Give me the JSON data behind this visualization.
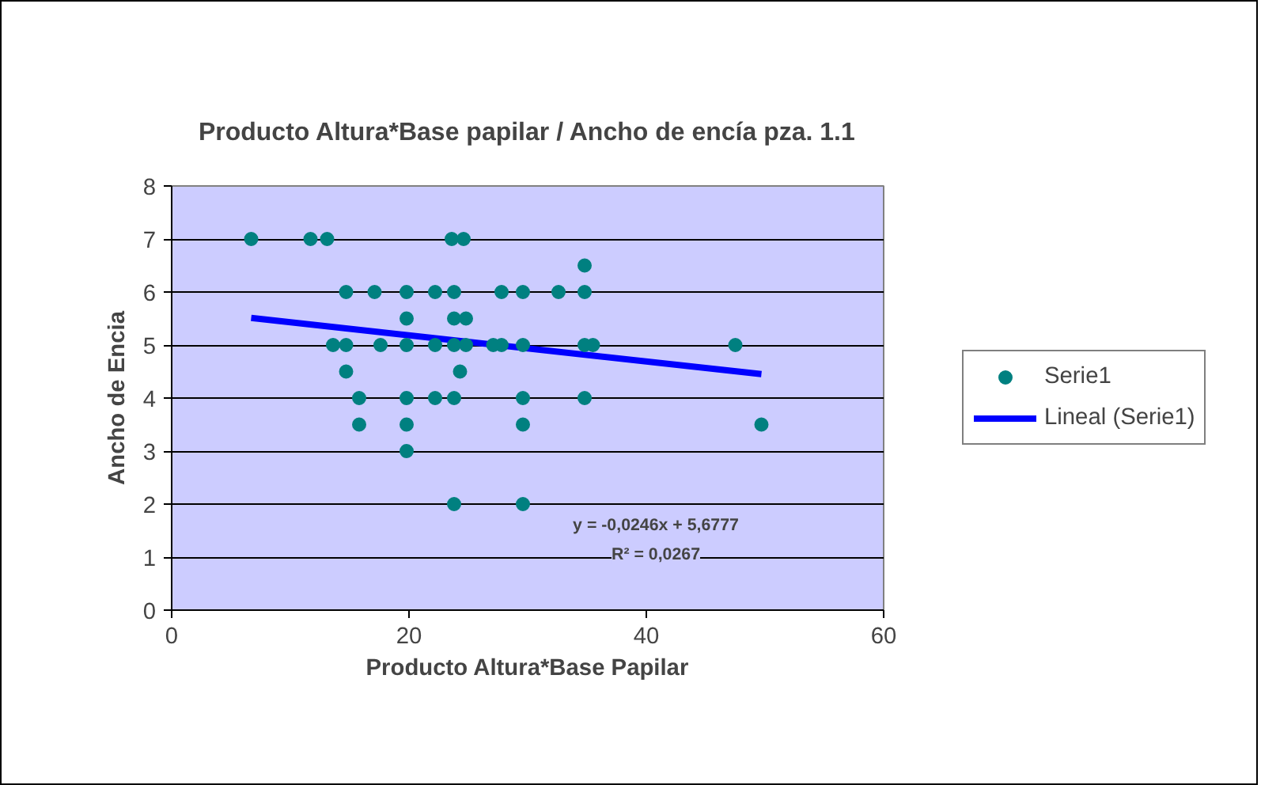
{
  "chart_data": {
    "type": "scatter",
    "title": "Producto Altura*Base papilar / Ancho de encía pza. 1.1",
    "xlabel": "Producto Altura*Base Papilar",
    "ylabel": "Ancho de Encia",
    "xlim": [
      0,
      60
    ],
    "xticks": [
      0,
      20,
      40,
      60
    ],
    "ylim": [
      0,
      8
    ],
    "yticks": [
      0,
      1,
      2,
      3,
      4,
      5,
      6,
      7,
      8
    ],
    "grid": "y",
    "legend": "right",
    "series": [
      {
        "name": "Serie1",
        "color": "#008080",
        "marker": "circle",
        "x": [
          6.7,
          11.7,
          13.1,
          23.6,
          24.6,
          14.7,
          17.1,
          19.8,
          22.2,
          23.8,
          27.8,
          29.6,
          32.6,
          34.8,
          19.8,
          23.8,
          24.8,
          13.6,
          14.7,
          17.6,
          19.8,
          22.2,
          23.8,
          24.8,
          27.1,
          27.8,
          29.6,
          34.8,
          35.5,
          47.5,
          14.7,
          24.3,
          15.8,
          19.8,
          22.2,
          23.8,
          29.6,
          34.8,
          15.8,
          19.8,
          29.6,
          49.7,
          19.8,
          23.8,
          29.6,
          34.8
        ],
        "values": [
          7,
          7,
          7,
          7,
          7,
          6,
          6,
          6,
          6,
          6,
          6,
          6,
          6,
          6,
          5.5,
          5.5,
          5.5,
          5,
          5,
          5,
          5,
          5,
          5,
          5,
          5,
          5,
          5,
          5,
          5,
          5,
          4.5,
          4.5,
          4,
          4,
          4,
          4,
          4,
          4,
          3.5,
          3.5,
          3.5,
          3.5,
          3,
          2,
          2,
          6.5
        ]
      },
      {
        "name": "Lineal (Serie1)",
        "type": "line",
        "color": "#0000ff",
        "x": [
          6.7,
          49.7
        ],
        "values": [
          5.51,
          4.45
        ]
      }
    ],
    "annotations": [
      "y = -0,0246x + 5,6777",
      "R² = 0,0267"
    ]
  }
}
